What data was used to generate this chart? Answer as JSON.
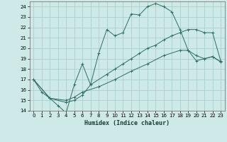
{
  "xlabel": "Humidex (Indice chaleur)",
  "background_color": "#cdeae8",
  "grid_color": "#aacfcd",
  "line_color": "#2d6e65",
  "xlim": [
    -0.5,
    23.5
  ],
  "ylim": [
    14,
    24.5
  ],
  "yticks": [
    14,
    15,
    16,
    17,
    18,
    19,
    20,
    21,
    22,
    23,
    24
  ],
  "xticks": [
    0,
    1,
    2,
    3,
    4,
    5,
    6,
    7,
    8,
    9,
    10,
    11,
    12,
    13,
    14,
    15,
    16,
    17,
    18,
    19,
    20,
    21,
    22,
    23
  ],
  "line1_x": [
    0,
    1,
    2,
    3,
    4,
    5,
    6,
    7,
    8,
    9,
    10,
    11,
    12,
    13,
    14,
    15,
    16,
    17,
    18,
    19,
    20,
    21,
    22,
    23
  ],
  "line1_y": [
    17.0,
    15.8,
    15.2,
    14.5,
    13.8,
    16.5,
    18.5,
    16.5,
    19.5,
    21.8,
    21.2,
    21.5,
    23.3,
    23.2,
    24.0,
    24.3,
    24.0,
    23.5,
    21.8,
    19.8,
    18.8,
    19.0,
    19.2,
    18.7
  ],
  "line2_x": [
    0,
    2,
    4,
    5,
    6,
    7,
    9,
    10,
    11,
    12,
    13,
    14,
    15,
    16,
    17,
    18,
    19,
    20,
    21,
    22,
    23
  ],
  "line2_y": [
    17.0,
    15.2,
    14.8,
    15.0,
    15.5,
    16.5,
    17.5,
    18.0,
    18.5,
    19.0,
    19.5,
    20.0,
    20.3,
    20.8,
    21.2,
    21.5,
    21.8,
    21.8,
    21.5,
    21.5,
    18.8
  ],
  "line3_x": [
    0,
    2,
    4,
    5,
    6,
    8,
    10,
    12,
    14,
    16,
    18,
    19,
    20,
    21,
    22,
    23
  ],
  "line3_y": [
    17.0,
    15.2,
    15.0,
    15.3,
    15.8,
    16.3,
    17.0,
    17.8,
    18.5,
    19.3,
    19.8,
    19.8,
    19.3,
    19.0,
    19.2,
    18.7
  ]
}
